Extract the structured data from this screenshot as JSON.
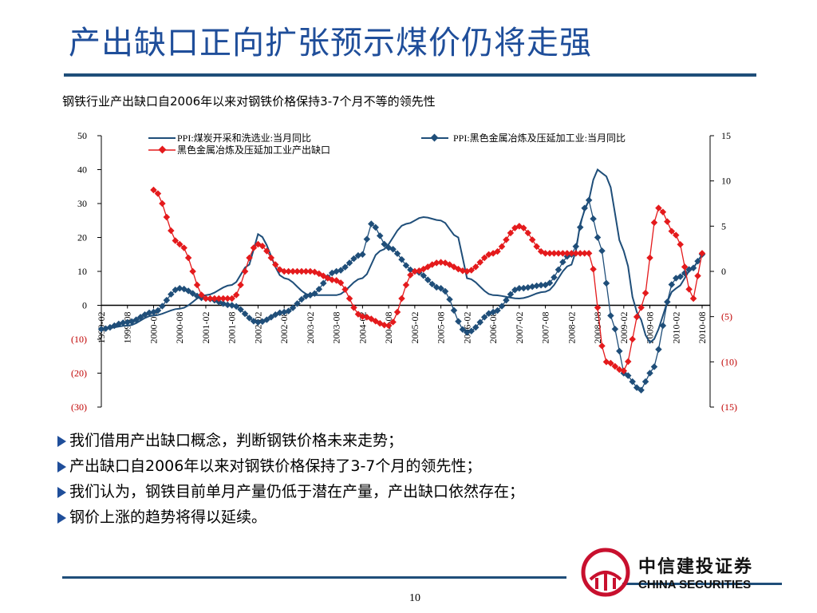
{
  "page": {
    "title": "产出缺口正向扩张预示煤价仍将走强",
    "subtitle": "钢铁行业产出缺口自2006年以来对钢铁价格保持3-7个月不等的领先性",
    "page_number": "10"
  },
  "bullets": [
    "我们借用产出缺口概念，判断钢铁价格未来走势；",
    "产出缺口自2006年以来对钢铁价格保持了3-7个月的领先性；",
    "我们认为，钢铁目前单月产量仍低于潜在产量，产出缺口依然存在；",
    "钢价上涨的趋势将得以延续。"
  ],
  "logo": {
    "name_cn": "中信建投证券",
    "name_en": "CHINA SECURITIES"
  },
  "colors": {
    "title": "#1f4e9a",
    "series_coal": "#1f4e79",
    "series_steel_ppi": "#1f4e79",
    "series_gap": "#e41a1c",
    "right_axis_text": "#c00000",
    "left_neg_text": "#c00000",
    "logo_red": "#c8102e"
  },
  "chart_data": {
    "type": "line",
    "left_axis": {
      "range": [
        -30,
        50
      ],
      "ticks": [
        50,
        40,
        30,
        20,
        10,
        0,
        -10,
        -20,
        -30
      ],
      "tick_labels": [
        "50",
        "40",
        "30",
        "20",
        "10",
        "0",
        "(10)",
        "(20)",
        "(30)"
      ]
    },
    "right_axis": {
      "range": [
        -15,
        15
      ],
      "ticks": [
        15,
        10,
        5,
        0,
        -5,
        -10,
        -15
      ],
      "tick_labels": [
        "15",
        "10",
        "5",
        "0",
        "(5)",
        "(10)",
        "(15)"
      ]
    },
    "x_axis": {
      "start": "1999-02",
      "end": "2010-08",
      "tick_labels": [
        "1999-02",
        "1999-08",
        "2000-02",
        "2000-08",
        "2001-02",
        "2001-08",
        "2002-02",
        "2002-08",
        "2003-02",
        "2003-08",
        "2004-02",
        "2004-08",
        "2005-02",
        "2005-08",
        "2006-02",
        "2006-08",
        "2007-02",
        "2007-08",
        "2008-02",
        "2008-08",
        "2009-02",
        "2009-08",
        "2010-02",
        "2010-08"
      ]
    },
    "legend": {
      "placement": "top",
      "entries": [
        "PPI:煤炭开采和洗选业:当月同比",
        "PPI:黑色金属冶炼及压延加工业:当月同比",
        "黑色金属冶炼及压延加工业产出缺口"
      ]
    },
    "series": [
      {
        "name": "PPI:煤炭开采和洗选业:当月同比",
        "axis": "left",
        "marker": "none",
        "x": [
          "1999-02",
          "1999-08",
          "2000-02",
          "2000-08",
          "2001-02",
          "2001-08",
          "2001-12",
          "2002-02",
          "2002-08",
          "2003-02",
          "2003-08",
          "2004-02",
          "2004-06",
          "2004-12",
          "2005-04",
          "2005-08",
          "2005-12",
          "2006-02",
          "2006-08",
          "2007-02",
          "2007-08",
          "2008-02",
          "2008-05",
          "2008-08",
          "2008-10",
          "2009-02",
          "2009-05",
          "2009-08",
          "2010-02",
          "2010-06",
          "2010-08"
        ],
        "y": [
          -7,
          -6,
          -3,
          -1,
          3,
          6,
          12,
          21,
          8,
          3,
          3,
          8,
          16,
          24,
          26,
          25,
          20,
          8,
          3,
          2,
          4,
          12,
          28,
          40,
          38,
          16,
          -2,
          -11,
          5,
          11,
          15
        ]
      },
      {
        "name": "PPI:黑色金属冶炼及压延加工业:当月同比",
        "axis": "left",
        "marker": "diamond",
        "x": [
          "1999-02",
          "1999-08",
          "2000-02",
          "2000-08",
          "2001-02",
          "2001-08",
          "2002-02",
          "2002-08",
          "2003-02",
          "2003-08",
          "2004-02",
          "2004-04",
          "2004-08",
          "2005-02",
          "2005-08",
          "2006-02",
          "2006-08",
          "2007-02",
          "2007-08",
          "2008-02",
          "2008-06",
          "2008-08",
          "2008-12",
          "2009-02",
          "2009-06",
          "2009-08",
          "2010-02",
          "2010-06",
          "2010-08"
        ],
        "y": [
          -7,
          -5,
          -2,
          5,
          2,
          0,
          -5,
          -2,
          3,
          10,
          15,
          24,
          17,
          10,
          5,
          -8,
          -2,
          5,
          6,
          15,
          31,
          20,
          -7,
          -20,
          -25,
          -20,
          8,
          11,
          15
        ]
      },
      {
        "name": "黑色金属冶炼及压延加工业产出缺口",
        "axis": "right",
        "marker": "diamond",
        "x": [
          "2000-02",
          "2000-08",
          "2001-02",
          "2001-08",
          "2002-02",
          "2002-08",
          "2003-02",
          "2003-08",
          "2004-02",
          "2004-08",
          "2005-02",
          "2005-08",
          "2006-02",
          "2006-08",
          "2007-02",
          "2007-08",
          "2008-02",
          "2008-06",
          "2008-10",
          "2009-02",
          "2009-06",
          "2009-10",
          "2010-02",
          "2010-06",
          "2010-08"
        ],
        "y": [
          9,
          3,
          -3,
          -3,
          3,
          0,
          0,
          -1,
          -5,
          -6,
          0,
          1,
          0,
          2,
          5,
          2,
          2,
          2,
          -10,
          -11,
          -4,
          7,
          4,
          -3,
          2
        ]
      }
    ]
  }
}
